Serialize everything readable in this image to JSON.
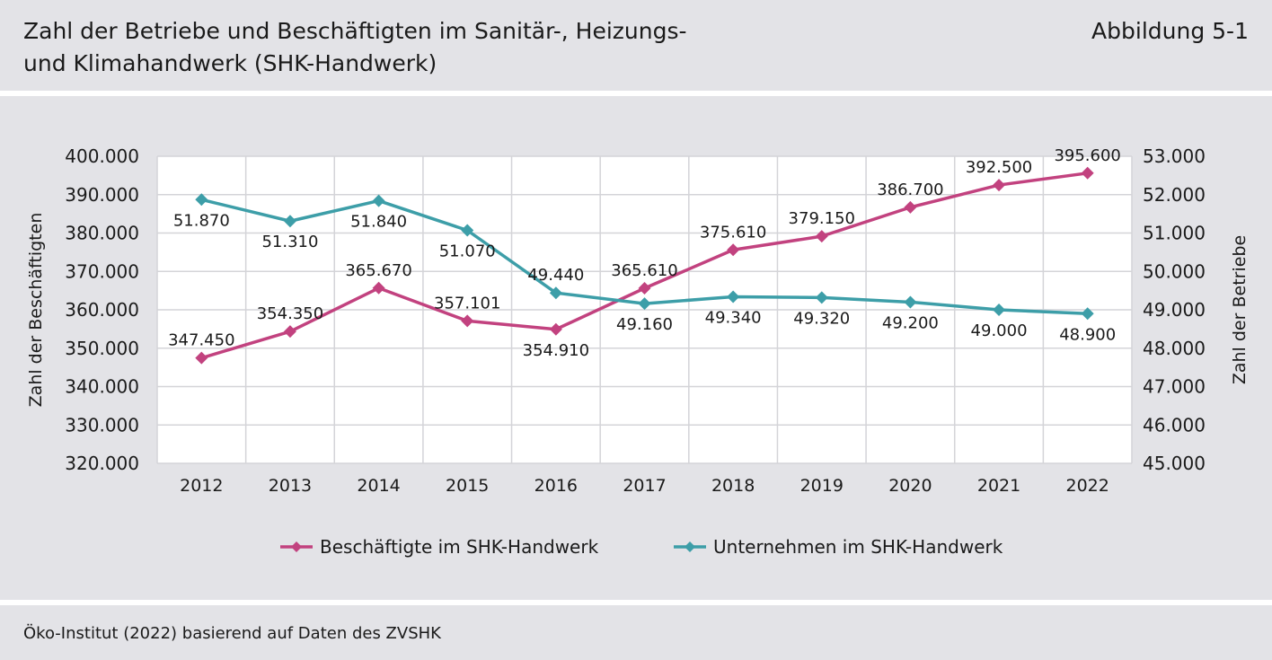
{
  "header": {
    "title_line1": "Zahl der Betriebe und Beschäftigten im Sanitär-, Heizungs-",
    "title_line2": "und Klimahandwerk (SHK-Handwerk)",
    "figure_number": "Abbildung 5-1"
  },
  "footer": {
    "source": "Öko-Institut (2022) basierend auf Daten des ZVSHK"
  },
  "colors": {
    "panel_bg": "#e3e3e7",
    "employees": "#c2427f",
    "companies": "#3d9ea8"
  },
  "chart_data": {
    "type": "line",
    "categories": [
      "2012",
      "2013",
      "2014",
      "2015",
      "2016",
      "2017",
      "2018",
      "2019",
      "2020",
      "2021",
      "2022"
    ],
    "ylabel_left": "Zahl der Beschäftigten",
    "ylabel_right": "Zahl der Betriebe",
    "ylim_left": [
      320000,
      400000
    ],
    "ylim_right": [
      45000,
      53000
    ],
    "yticks_left": [
      "320.000",
      "330.000",
      "340.000",
      "350.000",
      "360.000",
      "370.000",
      "380.000",
      "390.000",
      "400.000"
    ],
    "yticks_right": [
      "45.000",
      "46.000",
      "47.000",
      "48.000",
      "49.000",
      "50.000",
      "51.000",
      "52.000",
      "53.000"
    ],
    "grid": true,
    "legend_position": "bottom",
    "series": [
      {
        "name": "Beschäftigte im SHK-Handwerk",
        "axis": "left",
        "color": "#c2427f",
        "marker": "diamond",
        "values": [
          347450,
          354350,
          365670,
          357101,
          354910,
          365610,
          375610,
          379150,
          386700,
          392500,
          395600
        ],
        "labels": [
          "347.450",
          "354.350",
          "365.670",
          "357.101",
          "354.910",
          "365.610",
          "375.610",
          "379.150",
          "386.700",
          "392.500",
          "395.600"
        ]
      },
      {
        "name": "Unternehmen im SHK-Handwerk",
        "axis": "right",
        "color": "#3d9ea8",
        "marker": "diamond",
        "values": [
          51870,
          51310,
          51840,
          51070,
          49440,
          49160,
          49340,
          49320,
          49200,
          49000,
          48900
        ],
        "labels": [
          "51.870",
          "51.310",
          "51.840",
          "51.070",
          "49.440",
          "49.160",
          "49.340",
          "49.320",
          "49.200",
          "49.000",
          "48.900"
        ]
      }
    ]
  }
}
